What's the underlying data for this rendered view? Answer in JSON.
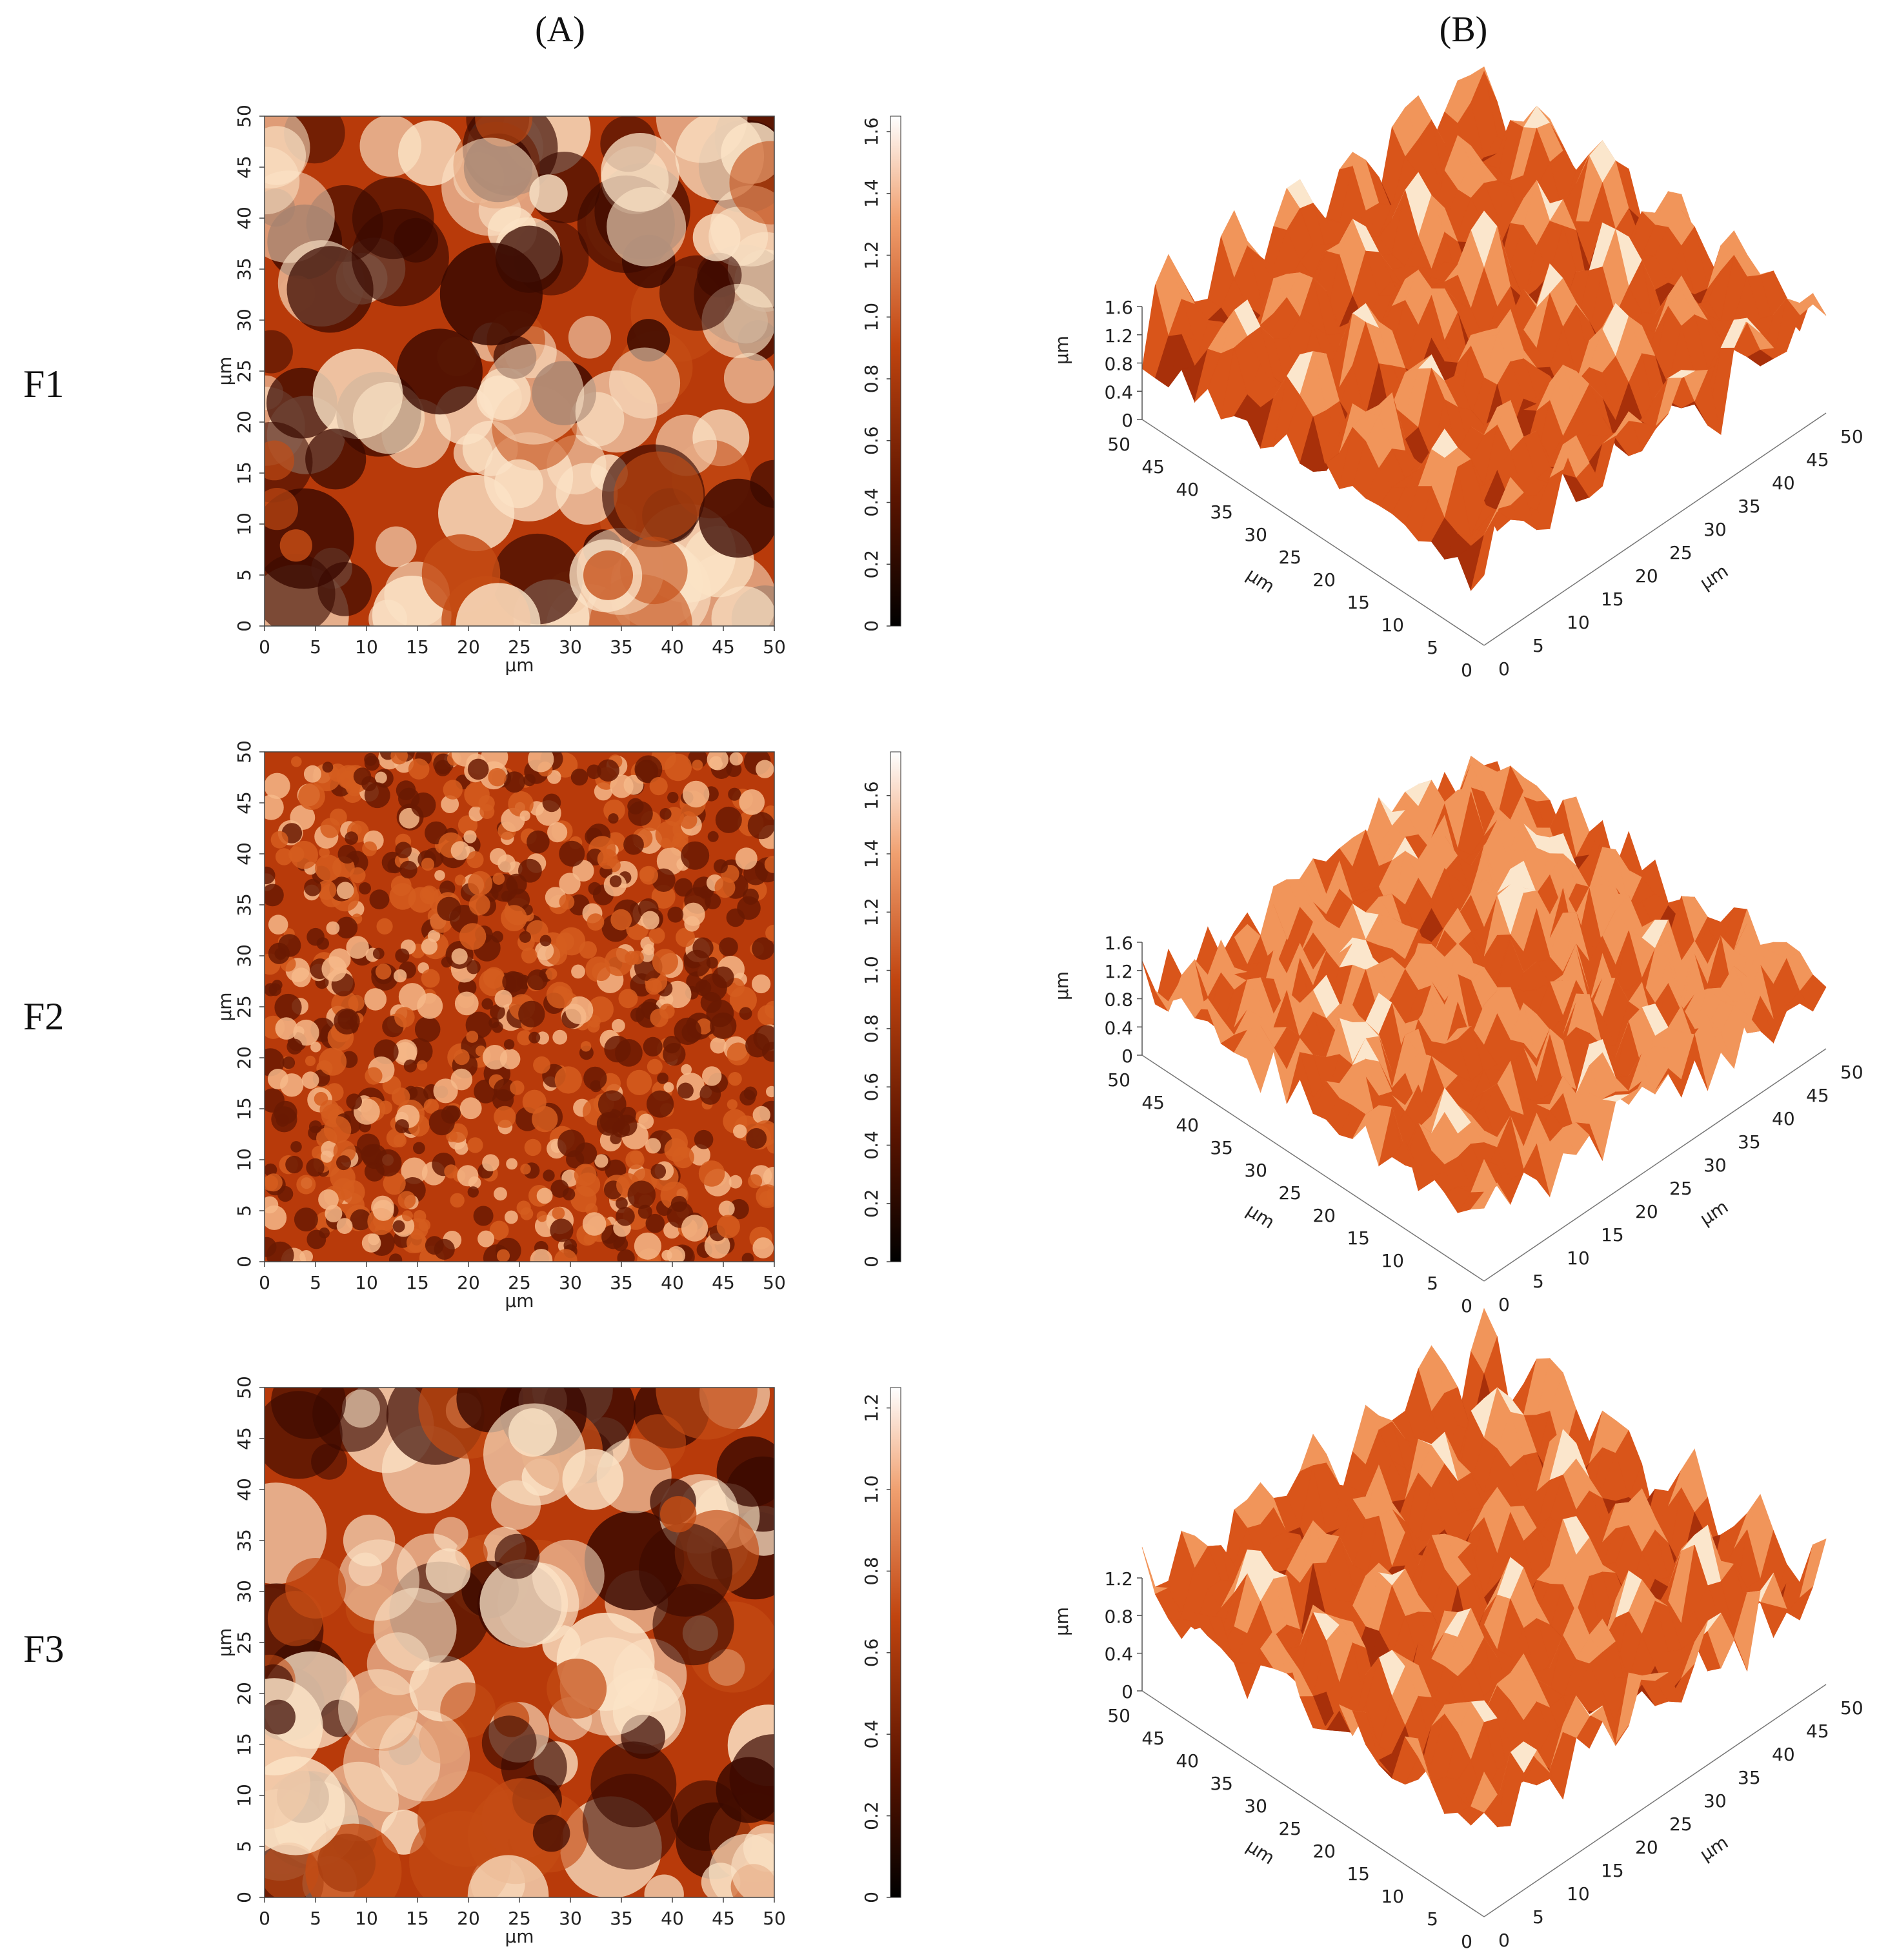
{
  "columns": [
    {
      "id": "A",
      "label": "(A)"
    },
    {
      "id": "B",
      "label": "(B)"
    }
  ],
  "unit": "µm",
  "axis_ticks": [
    "0",
    "5",
    "10",
    "15",
    "20",
    "25",
    "30",
    "35",
    "40",
    "45",
    "50"
  ],
  "rows": [
    {
      "label": "F1",
      "colorbar_ticks": [
        "0",
        "0.2",
        "0.4",
        "0.6",
        "0.8",
        "1.0",
        "1.2",
        "1.4",
        "1.6"
      ],
      "colorbar_max": 1.65,
      "z_ticks": [
        "1.6",
        "1.2",
        "0.8",
        "0.4",
        "0"
      ],
      "texture": "networked pores"
    },
    {
      "label": "F2",
      "colorbar_ticks": [
        "0",
        "0.2",
        "0.4",
        "0.6",
        "0.8",
        "1.0",
        "1.2",
        "1.4",
        "1.6"
      ],
      "colorbar_max": 1.75,
      "z_ticks": [
        "1.6",
        "1.2",
        "0.8",
        "0.4",
        "0"
      ],
      "texture": "granular"
    },
    {
      "label": "F3",
      "colorbar_ticks": [
        "0",
        "0.2",
        "0.4",
        "0.6",
        "0.8",
        "1.0",
        "1.2"
      ],
      "colorbar_max": 1.25,
      "z_ticks": [
        "1.2",
        "0.8",
        "0.4",
        "0"
      ],
      "texture": "cloudy pores"
    }
  ],
  "colors": {
    "dark": "#1a0500",
    "mid": "#b83a0a",
    "light": "#fff4e6"
  }
}
